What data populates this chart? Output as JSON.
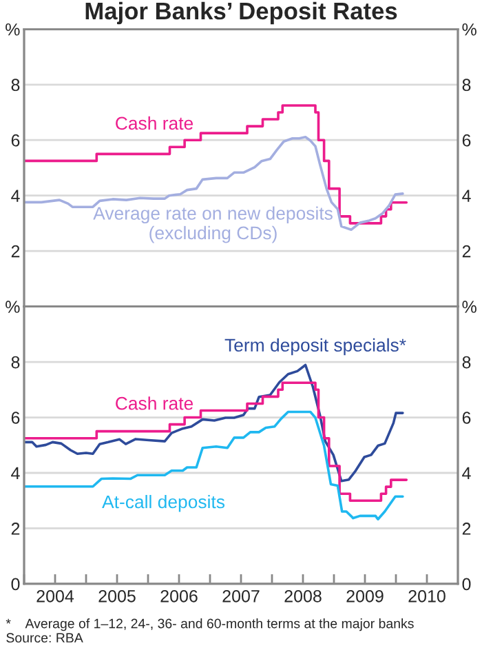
{
  "chart_data": [
    {
      "type": "line",
      "title": "Major Banks’ Deposit Rates",
      "xlim": [
        2004,
        2011
      ],
      "ylim": [
        0,
        10
      ],
      "yticks": [
        2,
        4,
        6,
        8,
        {
          "value": 10,
          "label": "%"
        }
      ],
      "y2lim": [
        0,
        10
      ],
      "y2ticks": [
        2,
        4,
        6,
        8,
        {
          "value": 10,
          "label": "%"
        }
      ],
      "tick_labels": "y",
      "grid": "y",
      "series": [
        {
          "name": "Cash rate",
          "type": "step",
          "color": "#ec1c8c",
          "x": [
            2004.0,
            2005.17,
            2006.35,
            2006.59,
            2006.85,
            2007.6,
            2007.85,
            2008.1,
            2008.17,
            2008.7,
            2008.75,
            2008.84,
            2008.92,
            2009.09,
            2009.26,
            2009.76,
            2009.84,
            2009.92,
            2010.17
          ],
          "values": [
            5.25,
            5.5,
            5.75,
            6.0,
            6.25,
            6.5,
            6.75,
            7.0,
            7.25,
            7.0,
            6.0,
            5.25,
            4.25,
            3.25,
            3.0,
            3.25,
            3.5,
            3.75,
            3.75
          ]
        },
        {
          "name": "Average rate on new deposits\n(excluding CDs)",
          "color": "#a3aee0",
          "x": [
            2004.02,
            2004.28,
            2004.57,
            2004.71,
            2004.78,
            2004.96,
            2005.11,
            2005.22,
            2005.43,
            2005.65,
            2005.87,
            2006.09,
            2006.27,
            2006.34,
            2006.52,
            2006.63,
            2006.78,
            2006.88,
            2007.1,
            2007.28,
            2007.39,
            2007.54,
            2007.72,
            2007.83,
            2007.97,
            2008.08,
            2008.19,
            2008.33,
            2008.44,
            2008.54,
            2008.62,
            2008.7,
            2008.77,
            2008.88,
            2008.96,
            2009.06,
            2009.12,
            2009.28,
            2009.42,
            2009.57,
            2009.67,
            2009.78,
            2009.89,
            2009.99,
            2010.11
          ],
          "values": [
            3.76,
            3.76,
            3.84,
            3.71,
            3.59,
            3.59,
            3.59,
            3.81,
            3.87,
            3.84,
            3.91,
            3.89,
            3.89,
            4.0,
            4.05,
            4.2,
            4.25,
            4.58,
            4.63,
            4.63,
            4.83,
            4.83,
            5.02,
            5.24,
            5.32,
            5.65,
            5.95,
            6.06,
            6.06,
            6.11,
            5.98,
            5.78,
            5.16,
            4.25,
            3.76,
            3.51,
            2.89,
            2.77,
            3.02,
            3.1,
            3.18,
            3.35,
            3.64,
            4.04,
            4.07
          ]
        }
      ]
    },
    {
      "type": "line",
      "xlim": [
        2004,
        2011
      ],
      "ylim": [
        0,
        10
      ],
      "yticks": [
        0,
        2,
        4,
        6,
        8,
        {
          "value": 10,
          "label": "%"
        }
      ],
      "y2lim": [
        0,
        10
      ],
      "y2ticks": [
        0,
        2,
        4,
        6,
        8,
        {
          "value": 10,
          "label": "%"
        }
      ],
      "grid": "y",
      "xticks": [
        {
          "value": 2004,
          "label": null
        },
        {
          "value": 2004.5,
          "label": "2004"
        },
        {
          "value": 2005,
          "label": null
        },
        {
          "value": 2005.5,
          "label": "2005"
        },
        {
          "value": 2006,
          "label": null
        },
        {
          "value": 2006.5,
          "label": "2006"
        },
        {
          "value": 2007,
          "label": null
        },
        {
          "value": 2007.5,
          "label": "2007"
        },
        {
          "value": 2008,
          "label": null
        },
        {
          "value": 2008.5,
          "label": "2008"
        },
        {
          "value": 2009,
          "label": null
        },
        {
          "value": 2009.5,
          "label": "2009"
        },
        {
          "value": 2010,
          "label": null
        },
        {
          "value": 2010.5,
          "label": "2010"
        }
      ],
      "annotations": [
        "*    Average of 1–12, 24-, 36- and 60-month terms at the major banks",
        "Source: RBA"
      ],
      "series": [
        {
          "name": "Term deposit specials*",
          "color": "#2e4b9b",
          "x": [
            2004.02,
            2004.13,
            2004.2,
            2004.35,
            2004.46,
            2004.6,
            2004.75,
            2004.86,
            2005.0,
            2005.11,
            2005.22,
            2005.36,
            2005.54,
            2005.64,
            2005.8,
            2006.01,
            2006.27,
            2006.38,
            2006.56,
            2006.7,
            2006.88,
            2007.07,
            2007.25,
            2007.39,
            2007.54,
            2007.61,
            2007.72,
            2007.79,
            2007.97,
            2008.12,
            2008.26,
            2008.41,
            2008.54,
            2008.66,
            2008.77,
            2008.86,
            2008.99,
            2009.12,
            2009.24,
            2009.35,
            2009.49,
            2009.6,
            2009.71,
            2009.82,
            2009.96,
            2010.0,
            2010.11
          ],
          "values": [
            5.11,
            5.11,
            4.95,
            5.01,
            5.11,
            5.06,
            4.82,
            4.69,
            4.72,
            4.69,
            5.04,
            5.11,
            5.21,
            5.04,
            5.22,
            5.18,
            5.14,
            5.44,
            5.6,
            5.67,
            5.93,
            5.89,
            5.99,
            5.99,
            6.09,
            6.32,
            6.32,
            6.74,
            6.81,
            7.27,
            7.56,
            7.67,
            7.89,
            7.1,
            6.12,
            5.14,
            4.65,
            3.71,
            3.76,
            4.08,
            4.57,
            4.65,
            4.98,
            5.06,
            5.8,
            6.16,
            6.16
          ]
        },
        {
          "name": "Cash rate",
          "type": "step",
          "color": "#ec1c8c",
          "x": [
            2004.0,
            2005.17,
            2006.35,
            2006.59,
            2006.85,
            2007.6,
            2007.85,
            2008.1,
            2008.17,
            2008.7,
            2008.75,
            2008.84,
            2008.92,
            2009.09,
            2009.26,
            2009.76,
            2009.84,
            2009.92,
            2010.17
          ],
          "values": [
            5.25,
            5.5,
            5.75,
            6.0,
            6.25,
            6.5,
            6.75,
            7.0,
            7.25,
            7.0,
            6.0,
            5.25,
            4.25,
            3.25,
            3.0,
            3.25,
            3.5,
            3.75,
            3.75
          ]
        },
        {
          "name": "At-call deposits",
          "color": "#1fb8f0",
          "x": [
            2004.02,
            2004.57,
            2005.11,
            2005.25,
            2005.43,
            2005.72,
            2005.83,
            2006.27,
            2006.38,
            2006.56,
            2006.63,
            2006.78,
            2006.88,
            2007.1,
            2007.28,
            2007.39,
            2007.54,
            2007.65,
            2007.79,
            2007.9,
            2008.04,
            2008.15,
            2008.26,
            2008.62,
            2008.7,
            2008.84,
            2008.95,
            2009.06,
            2009.13,
            2009.2,
            2009.31,
            2009.42,
            2009.67,
            2009.71,
            2009.82,
            2009.99,
            2010.11
          ],
          "values": [
            3.51,
            3.51,
            3.51,
            3.79,
            3.8,
            3.79,
            3.92,
            3.92,
            4.08,
            4.08,
            4.2,
            4.2,
            4.9,
            4.95,
            4.9,
            5.27,
            5.27,
            5.47,
            5.47,
            5.63,
            5.67,
            5.96,
            6.2,
            6.2,
            5.99,
            4.98,
            3.59,
            3.54,
            2.61,
            2.61,
            2.37,
            2.45,
            2.45,
            2.33,
            2.61,
            3.15,
            3.15
          ]
        }
      ]
    }
  ]
}
